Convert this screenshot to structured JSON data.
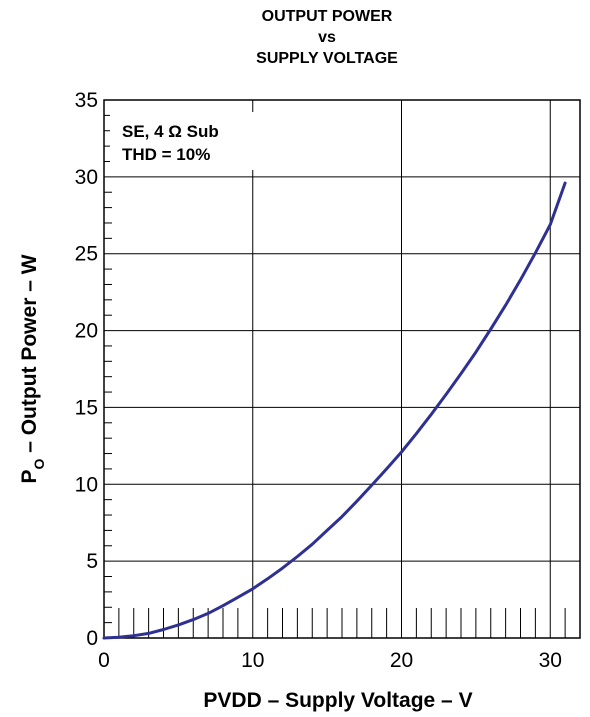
{
  "chart_data": {
    "type": "line",
    "title_lines": [
      "OUTPUT POWER",
      "vs",
      "SUPPLY VOLTAGE"
    ],
    "xlabel": "PVDD – Supply Voltage – V",
    "ylabel_main": "P",
    "ylabel_sub": "O",
    "ylabel_rest": " – Output Power – W",
    "xlim": [
      0,
      32
    ],
    "ylim": [
      0,
      35
    ],
    "x_ticks": [
      0,
      10,
      20,
      30
    ],
    "y_ticks": [
      0,
      5,
      10,
      15,
      20,
      25,
      30,
      35
    ],
    "grid": true,
    "annotation_lines": [
      "SE, 4 Ω Sub",
      "THD = 10%"
    ],
    "series": [
      {
        "color": "#2e3192",
        "x": [
          0,
          1,
          2,
          3,
          4,
          5,
          6,
          7,
          8,
          9,
          10,
          11,
          12,
          13,
          14,
          15,
          16,
          17,
          18,
          19,
          20,
          21,
          22,
          23,
          24,
          25,
          26,
          27,
          28,
          29,
          30,
          31
        ],
        "y": [
          0,
          0.05,
          0.15,
          0.3,
          0.55,
          0.85,
          1.2,
          1.6,
          2.1,
          2.65,
          3.2,
          3.85,
          4.55,
          5.3,
          6.1,
          7.0,
          7.9,
          8.9,
          9.95,
          11.0,
          12.1,
          13.3,
          14.55,
          15.85,
          17.2,
          18.6,
          20.1,
          21.65,
          23.3,
          25.05,
          26.9,
          29.6
        ]
      }
    ]
  }
}
